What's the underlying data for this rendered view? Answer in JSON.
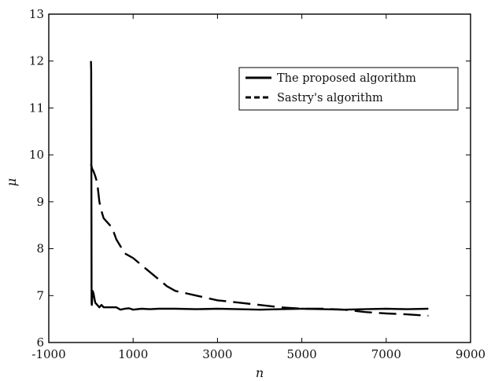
{
  "chart_data": {
    "type": "line",
    "xlabel": "n",
    "ylabel": "μ",
    "xlim": [
      -1000,
      9000
    ],
    "ylim": [
      6,
      13
    ],
    "x_ticks": [
      -1000,
      1000,
      3000,
      5000,
      7000,
      9000
    ],
    "y_ticks": [
      6,
      7,
      8,
      9,
      10,
      11,
      12,
      13
    ],
    "grid": false,
    "legend_position": "top-right",
    "series": [
      {
        "name": "The proposed algorithm",
        "style": "solid",
        "color": "#000000",
        "x": [
          0,
          5,
          10,
          15,
          20,
          30,
          40,
          60,
          80,
          100,
          150,
          200,
          250,
          300,
          400,
          500,
          600,
          700,
          800,
          900,
          1000,
          1200,
          1400,
          1600,
          1800,
          2000,
          2500,
          3000,
          3500,
          4000,
          4500,
          5000,
          5500,
          6000,
          6500,
          7000,
          7500,
          8000
        ],
        "y": [
          12.0,
          11.8,
          10.0,
          6.85,
          6.8,
          6.95,
          7.1,
          7.05,
          6.95,
          6.85,
          6.8,
          6.75,
          6.8,
          6.75,
          6.75,
          6.75,
          6.75,
          6.7,
          6.72,
          6.73,
          6.7,
          6.72,
          6.71,
          6.72,
          6.72,
          6.72,
          6.71,
          6.72,
          6.71,
          6.7,
          6.71,
          6.72,
          6.71,
          6.7,
          6.71,
          6.72,
          6.71,
          6.72
        ]
      },
      {
        "name": "Sastry's algorithm",
        "style": "dashed",
        "color": "#000000",
        "x": [
          0,
          30,
          60,
          100,
          150,
          200,
          250,
          300,
          400,
          500,
          600,
          800,
          1000,
          1200,
          1400,
          1600,
          1800,
          2000,
          2500,
          3000,
          3500,
          4000,
          4500,
          5000,
          5500,
          6000,
          6500,
          7000,
          7500,
          8000
        ],
        "y": [
          9.8,
          9.7,
          9.65,
          9.55,
          9.4,
          9.0,
          8.8,
          8.65,
          8.55,
          8.45,
          8.2,
          7.9,
          7.8,
          7.65,
          7.5,
          7.35,
          7.2,
          7.1,
          7.0,
          6.9,
          6.85,
          6.8,
          6.75,
          6.72,
          6.72,
          6.7,
          6.65,
          6.62,
          6.6,
          6.57
        ]
      }
    ]
  }
}
